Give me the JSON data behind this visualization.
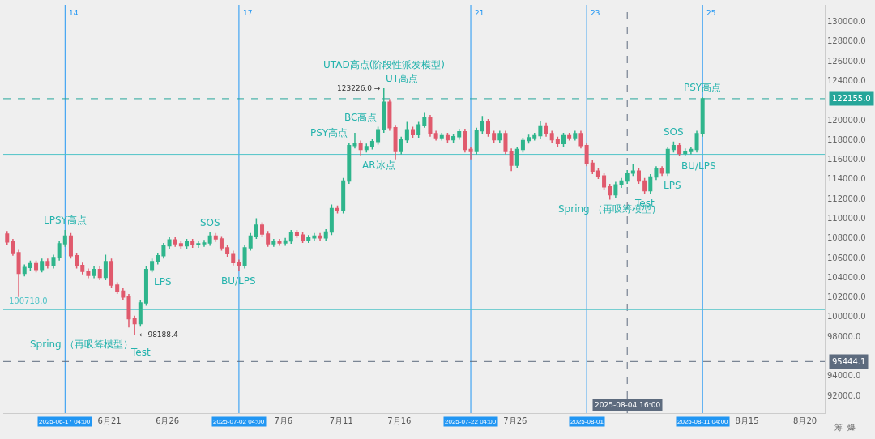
{
  "chart_data": {
    "type": "candlestick",
    "x": [
      "2025-06-12T04:00",
      "2025-06-12T16:00",
      "2025-06-13T04:00",
      "2025-06-13T16:00",
      "2025-06-14T04:00",
      "2025-06-14T16:00",
      "2025-06-15T04:00",
      "2025-06-15T16:00",
      "2025-06-16T04:00",
      "2025-06-16T16:00",
      "2025-06-17T04:00",
      "2025-06-17T16:00",
      "2025-06-18T04:00",
      "2025-06-18T16:00",
      "2025-06-19T04:00",
      "2025-06-19T16:00",
      "2025-06-20T04:00",
      "2025-06-20T16:00",
      "2025-06-21T04:00",
      "2025-06-21T16:00",
      "2025-06-22T04:00",
      "2025-06-22T16:00",
      "2025-06-23T04:00",
      "2025-06-23T16:00",
      "2025-06-24T04:00",
      "2025-06-24T16:00",
      "2025-06-25T04:00",
      "2025-06-25T16:00",
      "2025-06-26T04:00",
      "2025-06-26T16:00",
      "2025-06-27T04:00",
      "2025-06-27T16:00",
      "2025-06-28T04:00",
      "2025-06-28T16:00",
      "2025-06-29T04:00",
      "2025-06-29T16:00",
      "2025-06-30T04:00",
      "2025-06-30T16:00",
      "2025-07-01T04:00",
      "2025-07-01T16:00",
      "2025-07-02T04:00",
      "2025-07-02T16:00",
      "2025-07-03T04:00",
      "2025-07-03T16:00",
      "2025-07-04T04:00",
      "2025-07-04T16:00",
      "2025-07-05T04:00",
      "2025-07-05T16:00",
      "2025-07-06T04:00",
      "2025-07-06T16:00",
      "2025-07-07T04:00",
      "2025-07-07T16:00",
      "2025-07-08T04:00",
      "2025-07-08T16:00",
      "2025-07-09T04:00",
      "2025-07-09T16:00",
      "2025-07-10T04:00",
      "2025-07-10T16:00",
      "2025-07-11T04:00",
      "2025-07-11T16:00",
      "2025-07-12T04:00",
      "2025-07-12T16:00",
      "2025-07-13T04:00",
      "2025-07-13T16:00",
      "2025-07-14T04:00",
      "2025-07-14T16:00",
      "2025-07-15T04:00",
      "2025-07-15T16:00",
      "2025-07-16T04:00",
      "2025-07-16T16:00",
      "2025-07-17T04:00",
      "2025-07-17T16:00",
      "2025-07-18T04:00",
      "2025-07-18T16:00",
      "2025-07-19T04:00",
      "2025-07-19T16:00",
      "2025-07-20T04:00",
      "2025-07-20T16:00",
      "2025-07-21T04:00",
      "2025-07-21T16:00",
      "2025-07-22T04:00",
      "2025-07-22T16:00",
      "2025-07-23T04:00",
      "2025-07-23T16:00",
      "2025-07-24T04:00",
      "2025-07-24T16:00",
      "2025-07-25T04:00",
      "2025-07-25T16:00",
      "2025-07-26T04:00",
      "2025-07-26T16:00",
      "2025-07-27T04:00",
      "2025-07-27T16:00",
      "2025-07-28T04:00",
      "2025-07-28T16:00",
      "2025-07-29T04:00",
      "2025-07-29T16:00",
      "2025-07-30T04:00",
      "2025-07-30T16:00",
      "2025-07-31T04:00",
      "2025-07-31T16:00",
      "2025-08-01T04:00",
      "2025-08-01T16:00",
      "2025-08-02T04:00",
      "2025-08-02T16:00",
      "2025-08-03T04:00",
      "2025-08-03T16:00",
      "2025-08-04T04:00",
      "2025-08-04T16:00",
      "2025-08-05T04:00",
      "2025-08-05T16:00",
      "2025-08-06T04:00",
      "2025-08-06T16:00",
      "2025-08-07T04:00",
      "2025-08-07T16:00",
      "2025-08-08T04:00",
      "2025-08-08T16:00",
      "2025-08-09T04:00",
      "2025-08-09T16:00",
      "2025-08-10T04:00",
      "2025-08-10T16:00",
      "2025-08-11T04:00"
    ],
    "ohlc": [
      [
        108400,
        108700,
        107300,
        107600
      ],
      [
        107600,
        107900,
        106200,
        106500
      ],
      [
        106500,
        106800,
        102000,
        104400
      ],
      [
        104400,
        105300,
        104100,
        105000
      ],
      [
        105000,
        105700,
        104700,
        105400
      ],
      [
        105400,
        105700,
        104500,
        104800
      ],
      [
        104800,
        105900,
        104500,
        105600
      ],
      [
        105600,
        105900,
        104900,
        105200
      ],
      [
        105200,
        106300,
        104900,
        106000
      ],
      [
        106000,
        107700,
        105700,
        107400
      ],
      [
        107400,
        108800,
        107100,
        108200
      ],
      [
        108200,
        108500,
        105900,
        106200
      ],
      [
        106200,
        106500,
        104900,
        105200
      ],
      [
        105200,
        105500,
        104300,
        104600
      ],
      [
        104600,
        104900,
        103900,
        104200
      ],
      [
        104200,
        105100,
        103900,
        104800
      ],
      [
        104800,
        105100,
        103700,
        104000
      ],
      [
        104000,
        106300,
        103700,
        105600
      ],
      [
        105600,
        105900,
        102900,
        103200
      ],
      [
        103200,
        103500,
        102300,
        102600
      ],
      [
        102600,
        102900,
        101700,
        102000
      ],
      [
        102000,
        102300,
        98900,
        99800
      ],
      [
        99800,
        100100,
        98188.4,
        99300
      ],
      [
        99300,
        101700,
        99000,
        101400
      ],
      [
        101400,
        105100,
        101100,
        104800
      ],
      [
        104800,
        105900,
        104500,
        105600
      ],
      [
        105600,
        106500,
        105300,
        106200
      ],
      [
        106200,
        107500,
        105900,
        107200
      ],
      [
        107200,
        108100,
        106900,
        107800
      ],
      [
        107800,
        108100,
        107100,
        107400
      ],
      [
        107400,
        107700,
        106900,
        107200
      ],
      [
        107200,
        107900,
        106900,
        107600
      ],
      [
        107600,
        107900,
        107000,
        107300
      ],
      [
        107300,
        107700,
        107000,
        107400
      ],
      [
        107400,
        107800,
        107100,
        107500
      ],
      [
        107500,
        108600,
        107200,
        108200
      ],
      [
        108200,
        108500,
        107600,
        107900
      ],
      [
        107900,
        108200,
        106700,
        107000
      ],
      [
        107000,
        107300,
        106100,
        106400
      ],
      [
        106400,
        106700,
        105200,
        105500
      ],
      [
        105500,
        105800,
        104600,
        105200
      ],
      [
        105200,
        107300,
        104900,
        107000
      ],
      [
        107000,
        108500,
        106700,
        108200
      ],
      [
        108200,
        110000,
        107900,
        109300
      ],
      [
        109300,
        109600,
        108100,
        108400
      ],
      [
        108400,
        108700,
        107100,
        107400
      ],
      [
        107400,
        107900,
        107100,
        107600
      ],
      [
        107600,
        107900,
        107200,
        107500
      ],
      [
        107500,
        108000,
        107200,
        107700
      ],
      [
        107700,
        108800,
        107400,
        108500
      ],
      [
        108500,
        108800,
        108000,
        108300
      ],
      [
        108300,
        108600,
        107500,
        107800
      ],
      [
        107800,
        108300,
        107500,
        108000
      ],
      [
        108000,
        108500,
        107700,
        108200
      ],
      [
        108200,
        108500,
        107700,
        108000
      ],
      [
        108000,
        108900,
        107700,
        108600
      ],
      [
        108600,
        111400,
        108300,
        111000
      ],
      [
        111000,
        111300,
        110500,
        110800
      ],
      [
        110800,
        114100,
        110500,
        113800
      ],
      [
        113800,
        117700,
        113500,
        117400
      ],
      [
        117400,
        118700,
        117100,
        117600
      ],
      [
        117600,
        117900,
        116400,
        117000
      ],
      [
        117000,
        117600,
        116700,
        117300
      ],
      [
        117300,
        118100,
        117000,
        117800
      ],
      [
        117800,
        119300,
        117500,
        119000
      ],
      [
        119000,
        123226,
        118700,
        121800
      ],
      [
        121800,
        122100,
        118900,
        119200
      ],
      [
        119200,
        119500,
        116000,
        116800
      ],
      [
        116800,
        118300,
        116500,
        118000
      ],
      [
        118000,
        119800,
        117700,
        119000
      ],
      [
        119000,
        119300,
        118200,
        118500
      ],
      [
        118500,
        119800,
        118200,
        119500
      ],
      [
        119500,
        120800,
        119200,
        120200
      ],
      [
        120200,
        120500,
        118300,
        118600
      ],
      [
        118600,
        118900,
        117900,
        118200
      ],
      [
        118200,
        118700,
        117900,
        118400
      ],
      [
        118400,
        118700,
        117700,
        118000
      ],
      [
        118000,
        118600,
        117700,
        118300
      ],
      [
        118300,
        119100,
        118000,
        118800
      ],
      [
        118800,
        119100,
        116700,
        117000
      ],
      [
        117000,
        117300,
        116000,
        116800
      ],
      [
        116800,
        119200,
        116500,
        118900
      ],
      [
        118900,
        120400,
        118600,
        119800
      ],
      [
        119800,
        120100,
        118300,
        118600
      ],
      [
        118600,
        118900,
        117700,
        118000
      ],
      [
        118000,
        118900,
        117700,
        118600
      ],
      [
        118600,
        118900,
        116500,
        116800
      ],
      [
        116800,
        117100,
        114800,
        115400
      ],
      [
        115400,
        117300,
        115100,
        117000
      ],
      [
        117000,
        118200,
        116700,
        117900
      ],
      [
        117900,
        118500,
        117600,
        118200
      ],
      [
        118200,
        118700,
        117900,
        118400
      ],
      [
        118400,
        119900,
        118100,
        119400
      ],
      [
        119400,
        119700,
        118300,
        118600
      ],
      [
        118600,
        118900,
        117700,
        118000
      ],
      [
        118000,
        118300,
        117300,
        117600
      ],
      [
        117600,
        118700,
        117300,
        118400
      ],
      [
        118400,
        118700,
        117900,
        118200
      ],
      [
        118200,
        118900,
        117900,
        118600
      ],
      [
        118600,
        118900,
        117100,
        117400
      ],
      [
        117400,
        117700,
        115300,
        115600
      ],
      [
        115600,
        115900,
        114500,
        114800
      ],
      [
        114800,
        115100,
        114000,
        114300
      ],
      [
        114300,
        114600,
        112900,
        113200
      ],
      [
        113200,
        113500,
        111900,
        112400
      ],
      [
        112400,
        113700,
        112100,
        113400
      ],
      [
        113400,
        114100,
        113100,
        113800
      ],
      [
        113800,
        114900,
        113500,
        114600
      ],
      [
        114600,
        115500,
        114300,
        114800
      ],
      [
        114800,
        115100,
        113500,
        113800
      ],
      [
        113800,
        114100,
        112500,
        112800
      ],
      [
        112800,
        114500,
        112500,
        114200
      ],
      [
        114200,
        115300,
        113900,
        115000
      ],
      [
        115000,
        115300,
        114300,
        114600
      ],
      [
        114600,
        117300,
        114300,
        117000
      ],
      [
        117000,
        117800,
        116700,
        117400
      ],
      [
        117400,
        117700,
        116300,
        116600
      ],
      [
        116600,
        117100,
        116300,
        116800
      ],
      [
        116800,
        117300,
        116500,
        117000
      ],
      [
        117000,
        118900,
        116700,
        118600
      ],
      [
        118600,
        122300,
        118300,
        122155
      ]
    ],
    "xlim": [
      "2025-06-11T20:00",
      "2025-08-21T17:00"
    ],
    "xticks": [
      {
        "value": "2025-06-17T04:00",
        "label": "2025-06-17 04:00"
      },
      {
        "value": "2025-06-21",
        "label": "6月21"
      },
      {
        "value": "2025-06-26",
        "label": "6月26"
      },
      {
        "value": "2025-07-02T04:00",
        "label": "2025-07-02 04:00"
      },
      {
        "value": "2025-07-06",
        "label": "7月6"
      },
      {
        "value": "2025-07-11",
        "label": "7月11"
      },
      {
        "value": "2025-07-16",
        "label": "7月16"
      },
      {
        "value": "2025-07-22T04:00",
        "label": "2025-07-22 04:00"
      },
      {
        "value": "2025-07-26",
        "label": "7月26"
      },
      {
        "value": "2025-08-01T04:00",
        "label": "2025-08-01"
      },
      {
        "value": "2025-08-11T04:00",
        "label": "2025-08-11 04:00"
      },
      {
        "value": "2025-08-15",
        "label": "8月15"
      },
      {
        "value": "2025-08-20",
        "label": "8月20"
      }
    ],
    "ylim": [
      90200,
      131700
    ],
    "yticks": [
      {
        "value": 92000,
        "label": "92000.0"
      },
      {
        "value": 94000,
        "label": "94000.0"
      },
      {
        "value": 98000,
        "label": "98000.0"
      },
      {
        "value": 100000,
        "label": "100000.0"
      },
      {
        "value": 102000,
        "label": "102000.0"
      },
      {
        "value": 104000,
        "label": "104000.0"
      },
      {
        "value": 106000,
        "label": "106000.0"
      },
      {
        "value": 108000,
        "label": "108000.0"
      },
      {
        "value": 110000,
        "label": "110000.0"
      },
      {
        "value": 112000,
        "label": "112000.0"
      },
      {
        "value": 114000,
        "label": "114000.0"
      },
      {
        "value": 116000,
        "label": "116000.0"
      },
      {
        "value": 118000,
        "label": "118000.0"
      },
      {
        "value": 120000,
        "label": "120000.0"
      },
      {
        "value": 124000,
        "label": "124000.0"
      },
      {
        "value": 126000,
        "label": "126000.0"
      },
      {
        "value": 128000,
        "label": "128000.0"
      },
      {
        "value": 130000,
        "label": "130000.0"
      }
    ],
    "ref_lines": [
      {
        "axis": "x",
        "value": "2025-06-17T04:00",
        "label": "14",
        "color": "#2196f3",
        "line_style": "solid"
      },
      {
        "axis": "x",
        "value": "2025-07-02T04:00",
        "label": "17",
        "color": "#2196f3",
        "line_style": "solid"
      },
      {
        "axis": "x",
        "value": "2025-07-22T04:00",
        "label": "21",
        "color": "#2196f3",
        "line_style": "solid"
      },
      {
        "axis": "x",
        "value": "2025-08-01T04:00",
        "label": "23",
        "color": "#2196f3",
        "line_style": "solid"
      },
      {
        "axis": "x",
        "value": "2025-08-11T04:00",
        "label": "25",
        "color": "#2196f3",
        "line_style": "solid"
      },
      {
        "axis": "x",
        "value": "2025-08-04T16:00",
        "label": "2025-08-04 16:00",
        "color": "#5d6b7e",
        "line_style": "dashed"
      },
      {
        "axis": "y",
        "value": 122155,
        "label": "122155.0",
        "color": "#26a69a",
        "line_style": "dashed"
      },
      {
        "axis": "y",
        "value": 116500,
        "color": "#4fc3c7",
        "line_style": "solid"
      },
      {
        "axis": "y",
        "value": 100718,
        "label": "100718.0",
        "color": "#4fc3c7",
        "line_style": "solid"
      },
      {
        "axis": "y",
        "value": 95444.1,
        "label": "95444.1",
        "color": "#5d6b7e",
        "line_style": "dashed"
      }
    ],
    "annotations": [
      {
        "text": "LPSY高点",
        "x": "2025-06-17T04:00",
        "y": 108800
      },
      {
        "text": "123226.0 →",
        "x": "2025-07-14T16:00",
        "y": 123226
      },
      {
        "text": "← 98188.4",
        "x": "2025-06-23T04:00",
        "y": 98188.4
      },
      {
        "text": "Test",
        "x": "2025-06-23T16:00",
        "y": 99000
      },
      {
        "text": "Spring （再吸筹模型）",
        "x": "2025-06-23T04:00",
        "y": 98188.4
      },
      {
        "text": "LPS",
        "x": "2025-06-24T16:00",
        "y": 104500
      },
      {
        "text": "SOS",
        "x": "2025-06-29T16:00",
        "y": 108600
      },
      {
        "text": "BU/LPS",
        "x": "2025-07-02T04:00",
        "y": 104600
      },
      {
        "text": "PSY高点",
        "x": "2025-07-11T16:00",
        "y": 117700
      },
      {
        "text": "AR冰点",
        "x": "2025-07-12T16:00",
        "y": 116400
      },
      {
        "text": "BC高点",
        "x": "2025-07-14T04:00",
        "y": 119300
      },
      {
        "text": "UT高点",
        "x": "2025-07-14T16:00",
        "y": 123226
      },
      {
        "text": "UTAD高点(阶段性派发模型)",
        "x": "2025-07-14T16:00",
        "y": 123226
      },
      {
        "text": "Spring （再吸筹模型）",
        "x": "2025-08-03T04:00",
        "y": 111900
      },
      {
        "text": "Test",
        "x": "2025-08-06T04:00",
        "y": 112500
      },
      {
        "text": "LPS",
        "x": "2025-08-07T16:00",
        "y": 114300
      },
      {
        "text": "BU/LPS",
        "x": "2025-08-09T04:00",
        "y": 116300
      },
      {
        "text": "SOS",
        "x": "2025-08-08T16:00",
        "y": 117800
      },
      {
        "text": "PSY高点",
        "x": "2025-08-11T04:00",
        "y": 122300
      },
      "筹  爆"
    ]
  }
}
